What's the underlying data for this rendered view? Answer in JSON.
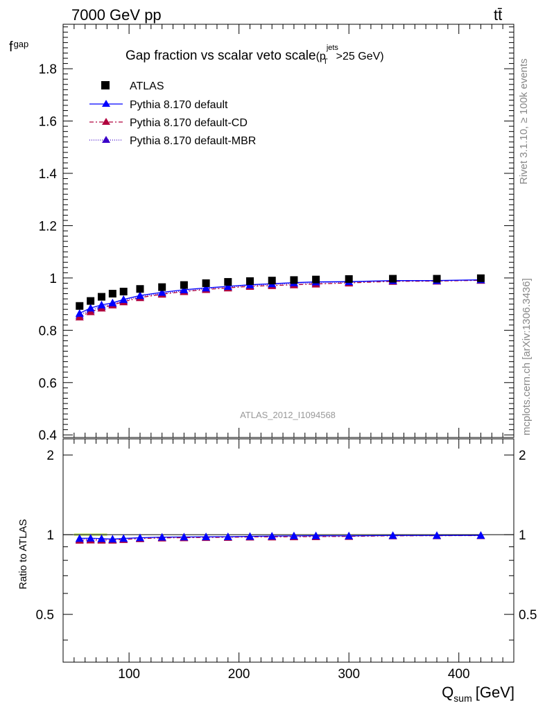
{
  "header": {
    "energy_label": "7000 GeV pp",
    "process_label": "tt̄"
  },
  "side_labels": {
    "rivet": "Rivet 3.1.10, ≥ 100k events",
    "mcplots": "mcplots.cern.ch [arXiv:1306.3436]"
  },
  "chart_data": {
    "type": "line",
    "title": "Gap fraction vs scalar veto scale",
    "title_cut": "(p",
    "title_cut_sup": "jets",
    "title_cut_sub": "T",
    "title_cut_rest": ">25 GeV)",
    "watermark": "ATLAS_2012_I1094568",
    "xlabel": "Q",
    "xlabel_sub": "sum",
    "xlabel_unit": "[GeV]",
    "ylabel": "f",
    "ylabel_sub": "gap",
    "ratio_ylabel": "Ratio to ATLAS",
    "xlim": [
      40,
      450
    ],
    "ylim": [
      0.39,
      1.97
    ],
    "ratio_ylim": [
      0.33,
      2.3
    ],
    "x_ticks": [
      100,
      200,
      300,
      400
    ],
    "x_tick_labels": [
      "100",
      "200",
      "300",
      "400"
    ],
    "y_ticks": [
      0.4,
      0.6,
      0.8,
      1.0,
      1.2,
      1.4,
      1.6,
      1.8
    ],
    "y_tick_labels": [
      "0.4",
      "0.6",
      "0.8",
      "1",
      "1.2",
      "1.4",
      "1.6",
      "1.8"
    ],
    "ratio_ticks": [
      0.5,
      1,
      2
    ],
    "ratio_tick_labels": [
      "0.5",
      "1",
      "2"
    ],
    "legend_placement": "top-left",
    "x": [
      55,
      65,
      75,
      85,
      95,
      110,
      130,
      150,
      170,
      190,
      210,
      230,
      250,
      270,
      300,
      340,
      380,
      420
    ],
    "series": [
      {
        "name": "ATLAS",
        "color": "#000000",
        "marker": "square",
        "values": [
          0.893,
          0.912,
          0.928,
          0.94,
          0.948,
          0.958,
          0.965,
          0.973,
          0.98,
          0.985,
          0.988,
          0.99,
          0.992,
          0.994,
          0.996,
          0.997,
          0.997,
          0.999
        ]
      },
      {
        "name": "Pythia 8.170 default",
        "color": "#0000ff",
        "marker": "triangle",
        "dash": "",
        "values": [
          0.865,
          0.885,
          0.897,
          0.905,
          0.918,
          0.933,
          0.945,
          0.955,
          0.962,
          0.968,
          0.974,
          0.978,
          0.982,
          0.985,
          0.986,
          0.99,
          0.99,
          0.993
        ],
        "ratio": [
          0.969,
          0.97,
          0.967,
          0.963,
          0.968,
          0.974,
          0.979,
          0.981,
          0.982,
          0.983,
          0.986,
          0.988,
          0.99,
          0.991,
          0.99,
          0.993,
          0.993,
          0.994
        ]
      },
      {
        "name": "Pythia 8.170 default-CD",
        "color": "#b0003c",
        "marker": "triangle",
        "dash": "6,3,2,3",
        "values": [
          0.851,
          0.871,
          0.885,
          0.897,
          0.909,
          0.925,
          0.938,
          0.948,
          0.956,
          0.962,
          0.968,
          0.971,
          0.974,
          0.977,
          0.981,
          0.987,
          0.988,
          0.991
        ],
        "ratio": [
          0.953,
          0.955,
          0.954,
          0.954,
          0.959,
          0.966,
          0.972,
          0.974,
          0.976,
          0.977,
          0.98,
          0.981,
          0.982,
          0.983,
          0.985,
          0.99,
          0.991,
          0.992
        ]
      },
      {
        "name": "Pythia 8.170 default-MBR",
        "color": "#3a00c8",
        "marker": "triangle",
        "dash": "1,2",
        "values": [
          0.858,
          0.878,
          0.891,
          0.901,
          0.914,
          0.929,
          0.941,
          0.951,
          0.959,
          0.965,
          0.971,
          0.975,
          0.978,
          0.981,
          0.984,
          0.989,
          0.989,
          0.992
        ],
        "ratio": [
          0.961,
          0.963,
          0.96,
          0.958,
          0.964,
          0.97,
          0.975,
          0.977,
          0.979,
          0.98,
          0.983,
          0.985,
          0.986,
          0.987,
          0.988,
          0.992,
          0.992,
          0.993
        ]
      }
    ]
  }
}
